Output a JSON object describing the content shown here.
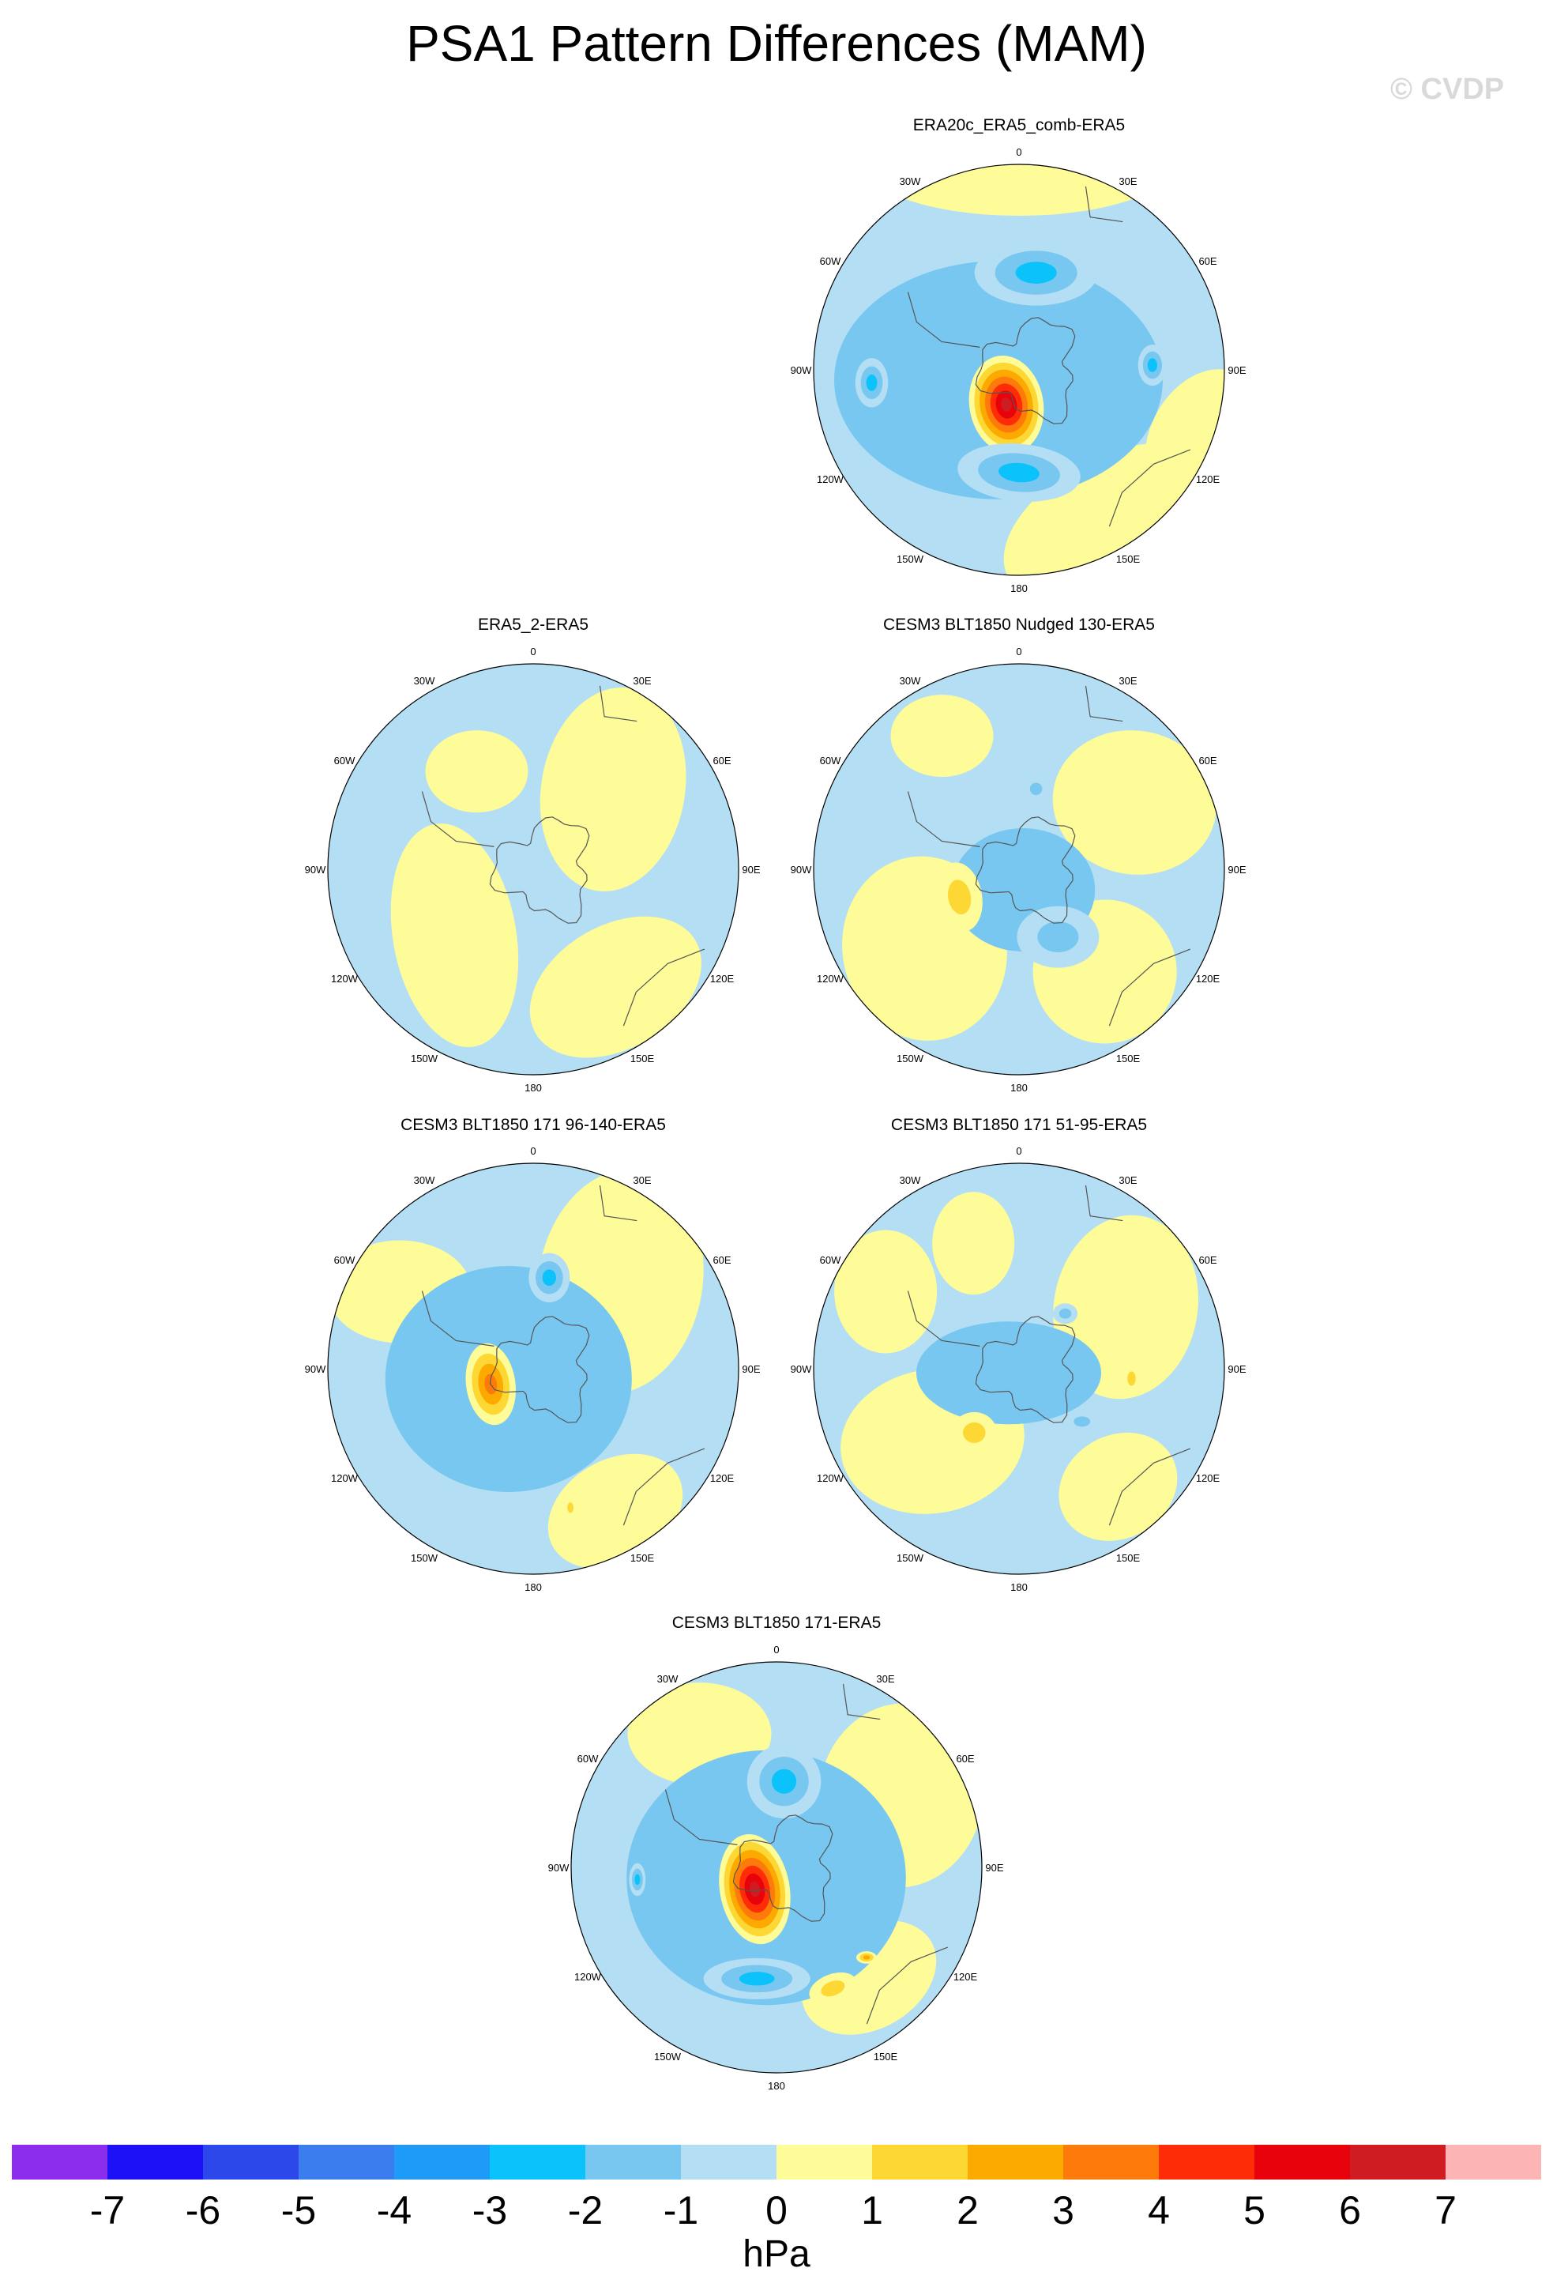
{
  "chart_data": {
    "type": "heatmap",
    "title": "PSA1 Pattern Differences (MAM)",
    "watermark": "© CVDP",
    "projection": "south polar stereographic",
    "longitude_labels": [
      "0",
      "30E",
      "60E",
      "90E",
      "120E",
      "150E",
      "180",
      "150W",
      "120W",
      "90W",
      "60W",
      "30W"
    ],
    "colorbar": {
      "units": "hPa",
      "levels": [
        "-7",
        "-6",
        "-5",
        "-4",
        "-3",
        "-2",
        "-1",
        "0",
        "1",
        "2",
        "3",
        "4",
        "5",
        "6",
        "7"
      ],
      "colors": [
        "#8c2ced",
        "#1c12f5",
        "#2c47ea",
        "#3b7cee",
        "#1e9bf6",
        "#0bc3fa",
        "#78c7f0",
        "#b4def4",
        "#fefb99",
        "#fdd834",
        "#fdaa00",
        "#fe7a0a",
        "#fe2d07",
        "#e8020b",
        "#cf1c22",
        "#fdb4b4"
      ]
    },
    "panels": [
      {
        "title": "ERA20c_ERA5_comb-ERA5",
        "max_anomaly_hPa": 6,
        "min_anomaly_hPa": -3
      },
      {
        "title": "ERA5_2-ERA5",
        "max_anomaly_hPa": 1,
        "min_anomaly_hPa": -1
      },
      {
        "title": "CESM3 BLT1850 Nudged 130-ERA5",
        "max_anomaly_hPa": 2,
        "min_anomaly_hPa": -2
      },
      {
        "title": "CESM3 BLT1850 171 96-140-ERA5",
        "max_anomaly_hPa": 4,
        "min_anomaly_hPa": -2
      },
      {
        "title": "CESM3 BLT1850 171 51-95-ERA5",
        "max_anomaly_hPa": 2,
        "min_anomaly_hPa": -2
      },
      {
        "title": "CESM3 BLT1850 171-ERA5",
        "max_anomaly_hPa": 6,
        "min_anomaly_hPa": -3
      }
    ]
  }
}
